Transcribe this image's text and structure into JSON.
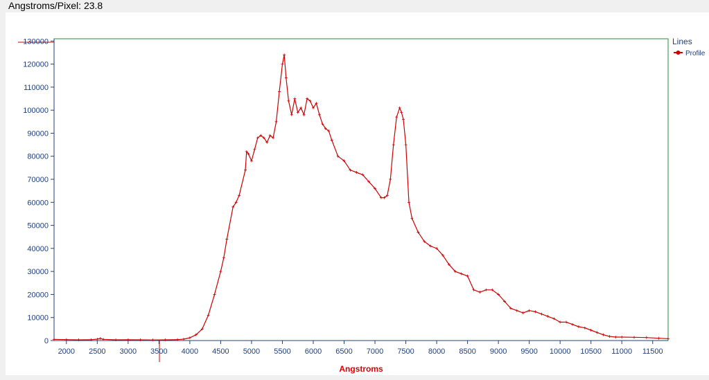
{
  "header": {
    "label": "Angstroms/Pixel:",
    "value": "23.8"
  },
  "chart_data": {
    "type": "line",
    "xlabel": "Angstroms",
    "ylabel": "",
    "xlim": [
      1800,
      11750
    ],
    "ylim": [
      0,
      131000
    ],
    "xticks": [
      2000,
      2500,
      3000,
      3500,
      4000,
      4500,
      5000,
      5500,
      6000,
      6500,
      7000,
      7500,
      8000,
      8500,
      9000,
      9500,
      10000,
      10500,
      11000,
      11500
    ],
    "yticks": [
      0,
      10000,
      20000,
      30000,
      40000,
      50000,
      60000,
      70000,
      80000,
      90000,
      100000,
      110000,
      120000,
      130000
    ],
    "legend": {
      "title": "Lines",
      "position": "top-right"
    },
    "grid": false,
    "colors": {
      "series": "#cc0000",
      "frame": "#2e8b3a",
      "axis_text": "#1f3f7a"
    },
    "series": [
      {
        "name": "Profile",
        "x": [
          1800,
          2000,
          2200,
          2400,
          2500,
          2550,
          2600,
          2800,
          3000,
          3200,
          3400,
          3600,
          3800,
          3900,
          4000,
          4100,
          4200,
          4300,
          4400,
          4500,
          4550,
          4600,
          4700,
          4750,
          4800,
          4900,
          4920,
          4950,
          5000,
          5050,
          5100,
          5150,
          5200,
          5250,
          5300,
          5350,
          5400,
          5450,
          5500,
          5530,
          5560,
          5600,
          5650,
          5700,
          5750,
          5800,
          5850,
          5900,
          5950,
          6000,
          6050,
          6100,
          6150,
          6200,
          6250,
          6300,
          6400,
          6500,
          6600,
          6700,
          6800,
          6900,
          7000,
          7100,
          7150,
          7200,
          7250,
          7300,
          7350,
          7400,
          7430,
          7460,
          7500,
          7550,
          7600,
          7700,
          7800,
          7900,
          8000,
          8100,
          8200,
          8300,
          8400,
          8500,
          8600,
          8700,
          8800,
          8900,
          9000,
          9100,
          9200,
          9300,
          9400,
          9500,
          9600,
          9700,
          9800,
          9900,
          10000,
          10100,
          10200,
          10300,
          10400,
          10500,
          10600,
          10700,
          10800,
          10900,
          11000,
          11200,
          11400,
          11600,
          11750
        ],
        "y": [
          500,
          400,
          300,
          350,
          600,
          900,
          500,
          300,
          350,
          300,
          250,
          300,
          400,
          600,
          1200,
          2500,
          5000,
          11000,
          20000,
          30000,
          36000,
          44000,
          58000,
          60000,
          63000,
          74000,
          82000,
          81000,
          78000,
          83000,
          88000,
          89000,
          88000,
          86000,
          89000,
          88000,
          95000,
          108000,
          120000,
          124000,
          114000,
          104000,
          98000,
          105000,
          99000,
          101000,
          98000,
          105000,
          104000,
          101000,
          103000,
          98000,
          94000,
          92000,
          91000,
          87000,
          80000,
          78000,
          74000,
          73000,
          72000,
          69000,
          66000,
          62000,
          62000,
          63000,
          70000,
          85000,
          97000,
          101000,
          99000,
          96000,
          85000,
          60000,
          53000,
          47000,
          43000,
          41000,
          40000,
          37000,
          33000,
          30000,
          29000,
          28000,
          22000,
          21000,
          22000,
          22000,
          20000,
          17000,
          14000,
          13000,
          12000,
          13000,
          12500,
          11500,
          10500,
          9500,
          8000,
          8000,
          7000,
          6000,
          5500,
          4500,
          3500,
          2500,
          1800,
          1500,
          1500,
          1400,
          1300,
          1000,
          800
        ]
      }
    ]
  }
}
